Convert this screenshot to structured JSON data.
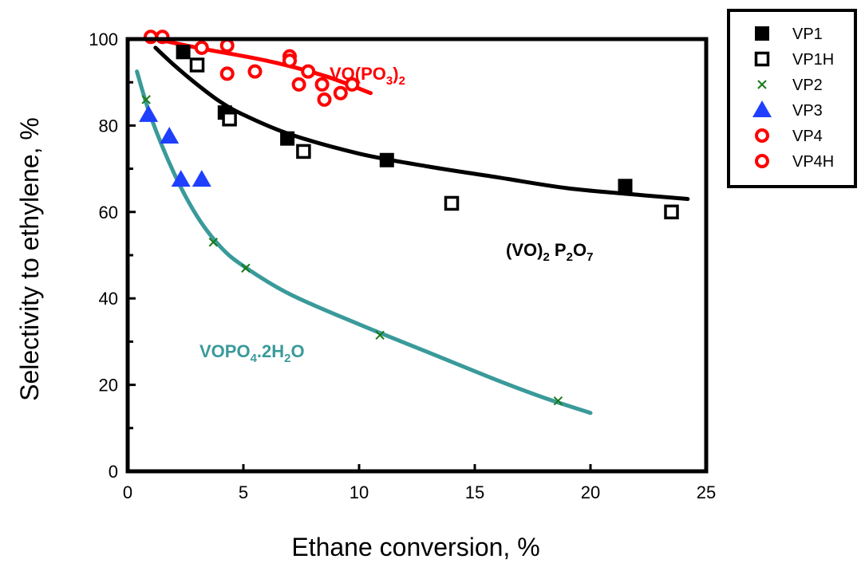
{
  "chart_data": {
    "type": "scatter",
    "title": "",
    "xlabel": "Ethane conversion, %",
    "ylabel": "Selectivity to ethylene,  %",
    "xlim": [
      0,
      25
    ],
    "ylim": [
      0,
      100
    ],
    "xticks": [
      "0",
      "5",
      "10",
      "15",
      "20",
      "25"
    ],
    "yticks": [
      "0",
      "20",
      "40",
      "60",
      "80",
      "100"
    ],
    "grid": false,
    "legend": "outside top-right",
    "series": [
      {
        "name": "VP1",
        "marker": "filled-square",
        "color": "#000000",
        "points": [
          [
            2.4,
            97
          ],
          [
            4.2,
            83
          ],
          [
            6.9,
            77
          ],
          [
            11.2,
            72
          ],
          [
            21.5,
            66
          ]
        ]
      },
      {
        "name": "VP1H",
        "marker": "open-square",
        "color": "#000000",
        "points": [
          [
            3.0,
            94
          ],
          [
            4.4,
            81.5
          ],
          [
            7.6,
            74
          ],
          [
            14.0,
            62
          ],
          [
            23.5,
            60
          ]
        ]
      },
      {
        "name": "VP2",
        "marker": "x",
        "color": "#1a7a1a",
        "points": [
          [
            0.8,
            86
          ],
          [
            3.7,
            53
          ],
          [
            5.1,
            47
          ],
          [
            10.9,
            31.5
          ],
          [
            18.6,
            16.3
          ]
        ]
      },
      {
        "name": "VP3",
        "marker": "triangle",
        "color": "#1f3fff",
        "points": [
          [
            0.9,
            82.5
          ],
          [
            1.8,
            77.5
          ],
          [
            2.3,
            67.5
          ],
          [
            3.2,
            67.5
          ]
        ]
      },
      {
        "name": "VP4",
        "marker": "open-circle",
        "color": "#ff0000",
        "points": [
          [
            1.0,
            100.5
          ],
          [
            1.5,
            100.5
          ],
          [
            3.2,
            98
          ],
          [
            4.3,
            98.5
          ],
          [
            7.0,
            96
          ],
          [
            7.8,
            92.5
          ],
          [
            8.5,
            86
          ],
          [
            9.7,
            89.5
          ]
        ]
      },
      {
        "name": "VP4H",
        "marker": "open-circle",
        "color": "#ff0000",
        "points": [
          [
            4.3,
            92
          ],
          [
            5.5,
            92.5
          ],
          [
            7.0,
            95
          ],
          [
            7.4,
            89.5
          ],
          [
            8.4,
            89.5
          ],
          [
            9.2,
            87.5
          ]
        ]
      }
    ],
    "fit_curves": [
      {
        "label": "VO(PO₃)₂",
        "color": "#ff0000",
        "points": [
          [
            0.8,
            100.5
          ],
          [
            3,
            98
          ],
          [
            6,
            95
          ],
          [
            8.5,
            91.5
          ],
          [
            10.5,
            87.5
          ]
        ]
      },
      {
        "label": "(VO)₂P₂O₇",
        "color": "#000000",
        "points": [
          [
            1.2,
            98
          ],
          [
            2,
            94
          ],
          [
            3,
            89.5
          ],
          [
            4,
            85.5
          ],
          [
            5,
            82.5
          ],
          [
            7,
            78
          ],
          [
            10,
            73.5
          ],
          [
            13,
            70.5
          ],
          [
            16,
            68
          ],
          [
            19,
            65.5
          ],
          [
            22,
            64
          ],
          [
            24.2,
            63
          ]
        ]
      },
      {
        "label": "VOPO₄.2H₂O",
        "color": "#3a9a9a",
        "points": [
          [
            0.4,
            92.5
          ],
          [
            1,
            82
          ],
          [
            2,
            69
          ],
          [
            3,
            59
          ],
          [
            4,
            52
          ],
          [
            5,
            47.5
          ],
          [
            7,
            41
          ],
          [
            10,
            34
          ],
          [
            13,
            27.5
          ],
          [
            16,
            21
          ],
          [
            18,
            17
          ],
          [
            20,
            13.5
          ]
        ]
      }
    ],
    "annotations": {
      "vo_po3": {
        "base": "VO(PO",
        "sub1": "3",
        "close": ")",
        "sub2": "2"
      },
      "vo2p2o7": {
        "part1": "(VO)",
        "sub1": "2",
        "part2": " P",
        "sub2": "2",
        "part3": "O",
        "sub3": "7"
      },
      "vopo4": {
        "part1": "VOPO",
        "sub1": "4",
        "part2": ".2H",
        "sub2": "2",
        "part3": "O"
      }
    }
  }
}
